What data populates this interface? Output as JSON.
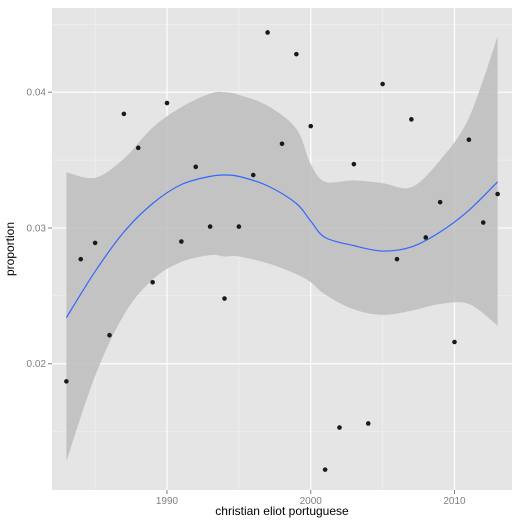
{
  "chart_data": {
    "type": "scatter",
    "title": "",
    "xlabel": "christian eliot portuguese",
    "ylabel": "proportion",
    "xlim": [
      1982,
      2014
    ],
    "ylim": [
      0.0107,
      0.0462
    ],
    "x_ticks": [
      1990,
      2000,
      2010
    ],
    "x_tick_labels": [
      "1990",
      "2000",
      "2010"
    ],
    "y_ticks": [
      0.02,
      0.03,
      0.04
    ],
    "y_tick_labels": [
      "0.02",
      "0.03",
      "0.04"
    ],
    "grid": true,
    "legend": "none",
    "colors": {
      "panel": "#e5e5e5",
      "grid_major": "#ffffff",
      "grid_minor": "#f2f2f2",
      "points": "#1a1a1a",
      "smooth_line": "#3366ff",
      "ribbon": "#bdbdbd"
    },
    "series": [
      {
        "kind": "points",
        "x": [
          1983,
          1984,
          1985,
          1986,
          1987,
          1988,
          1989,
          1990,
          1991,
          1992,
          1993,
          1994,
          1995,
          1996,
          1997,
          1998,
          1999,
          2000,
          2001,
          2002,
          2003,
          2004,
          2005,
          2006,
          2007,
          2008,
          2009,
          2010,
          2011,
          2012,
          2013
        ],
        "values": [
          0.0187,
          0.0277,
          0.0289,
          0.0221,
          0.0384,
          0.0359,
          0.026,
          0.0392,
          0.029,
          0.0345,
          0.0301,
          0.0248,
          0.0301,
          0.0339,
          0.0444,
          0.0362,
          0.0428,
          0.0375,
          0.0122,
          0.0153,
          0.0347,
          0.0156,
          0.0406,
          0.0277,
          0.038,
          0.0293,
          0.0319,
          0.0216,
          0.0365,
          0.0304,
          0.0325
        ]
      },
      {
        "kind": "smooth",
        "x": [
          1983,
          1985,
          1987,
          1989,
          1991,
          1993,
          1994,
          1995,
          1997,
          1999,
          2000,
          2001,
          2003,
          2005,
          2007,
          2009,
          2011,
          2013
        ],
        "values": [
          0.0234,
          0.0268,
          0.0297,
          0.0318,
          0.0332,
          0.0338,
          0.0339,
          0.0338,
          0.0331,
          0.0318,
          0.0305,
          0.0293,
          0.0287,
          0.0283,
          0.0286,
          0.0297,
          0.0313,
          0.0334
        ],
        "lower": [
          0.0128,
          0.0191,
          0.0236,
          0.0262,
          0.0275,
          0.028,
          0.0279,
          0.0279,
          0.0274,
          0.0266,
          0.026,
          0.0251,
          0.024,
          0.0236,
          0.0239,
          0.0244,
          0.0244,
          0.0228
        ],
        "upper": [
          0.0341,
          0.0337,
          0.0351,
          0.0374,
          0.0389,
          0.0399,
          0.04,
          0.0398,
          0.039,
          0.0373,
          0.0347,
          0.0334,
          0.0335,
          0.0333,
          0.033,
          0.035,
          0.0381,
          0.0441
        ]
      }
    ]
  }
}
